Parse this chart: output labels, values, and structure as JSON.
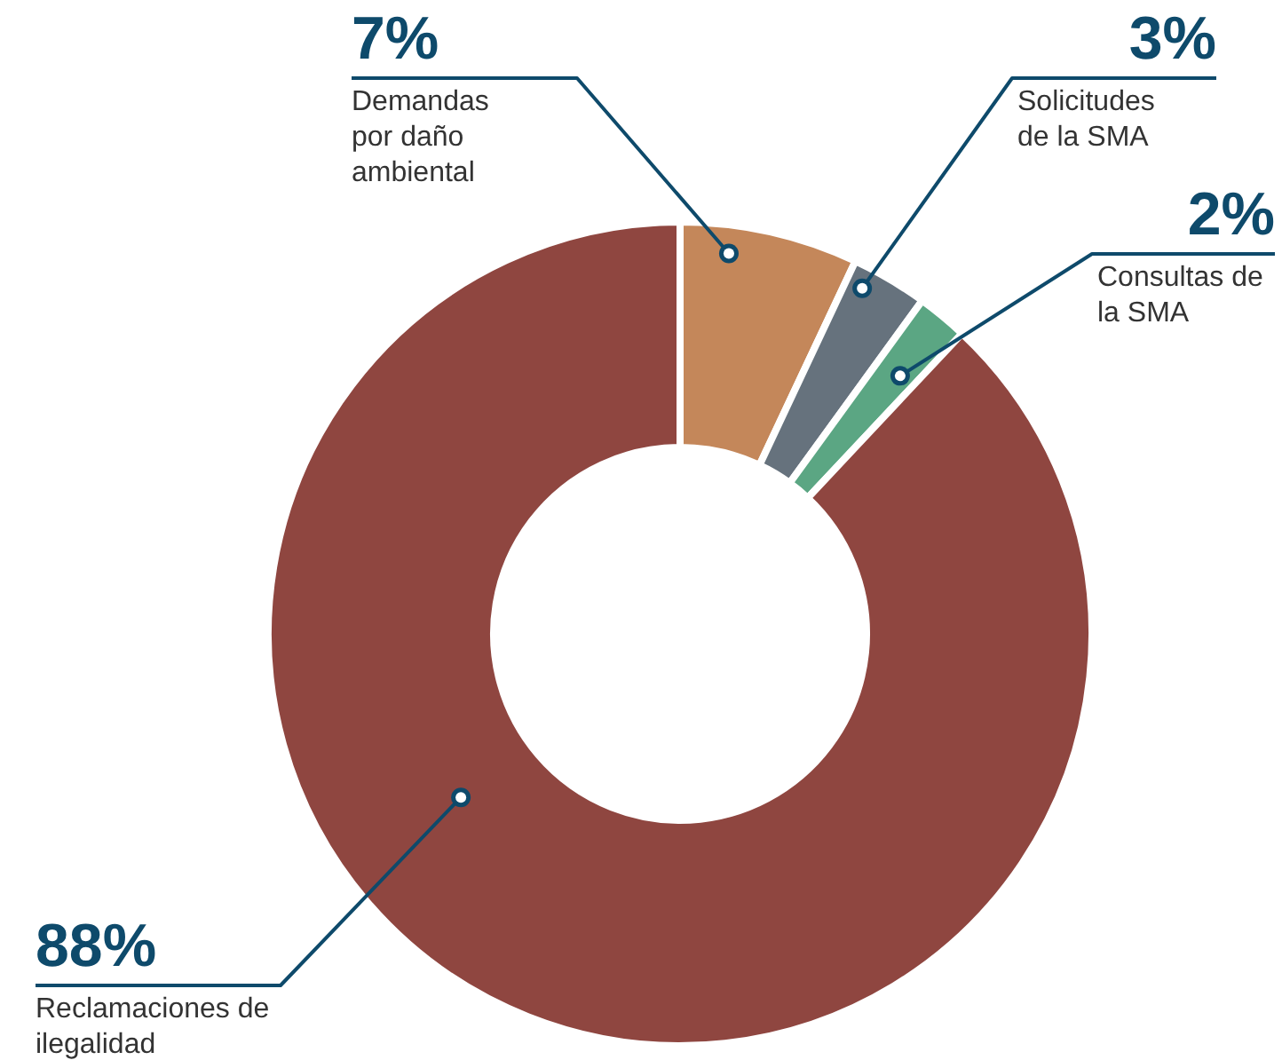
{
  "chart_data": {
    "type": "donut",
    "categories": [
      "Demandas por daño ambiental",
      "Solicitudes de la SMA",
      "Consultas de la SMA",
      "Reclamaciones de ilegalidad"
    ],
    "values": [
      7,
      3,
      2,
      88
    ],
    "value_labels": [
      "7%",
      "3%",
      "2%",
      "88%"
    ],
    "colors": [
      "#c4875a",
      "#66727d",
      "#5ba683",
      "#8f4640"
    ]
  }
}
